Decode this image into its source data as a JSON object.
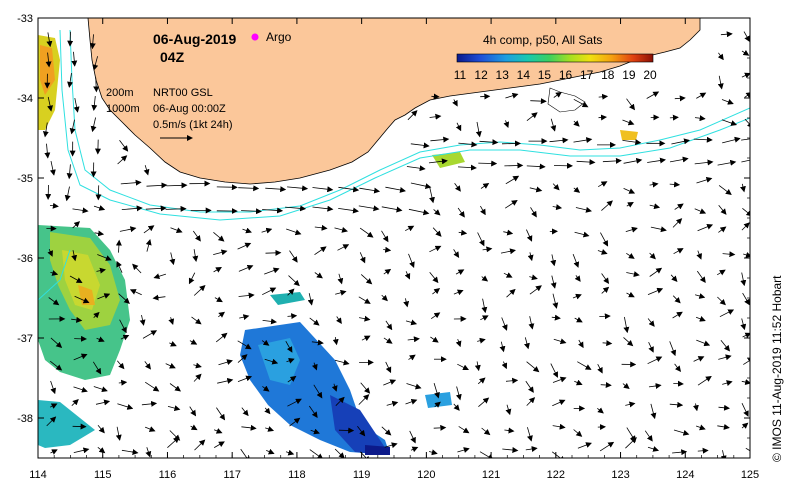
{
  "title": {
    "date": "06-Aug-2019",
    "hour": "04Z",
    "argo_label": "Argo"
  },
  "colorbar": {
    "title": "4h comp, p50, All Sats",
    "ticks": [
      "11",
      "12",
      "13",
      "14",
      "15",
      "16",
      "17",
      "18",
      "19",
      "20"
    ],
    "min": 11,
    "max": 20
  },
  "legend": {
    "depth_200": "200m",
    "depth_1000": "1000m",
    "product": "NRT00 GSL",
    "time": "06-Aug 00:00Z",
    "scale": "0.5m/s (1kt 24h)"
  },
  "axes": {
    "x_ticks": [
      "114",
      "115",
      "116",
      "117",
      "118",
      "119",
      "120",
      "121",
      "122",
      "123",
      "124",
      "125"
    ],
    "y_ticks": [
      "-33",
      "-34",
      "-35",
      "-36",
      "-37",
      "-38"
    ],
    "x_range": [
      114,
      125
    ],
    "y_range": [
      -38.5,
      -33
    ]
  },
  "credit": "© IMOS 11-Aug-2019 11:52 Hobart",
  "colors": {
    "land": "#fbc79a",
    "contour": "#2fe0e0",
    "argo": "#ff00ff"
  }
}
